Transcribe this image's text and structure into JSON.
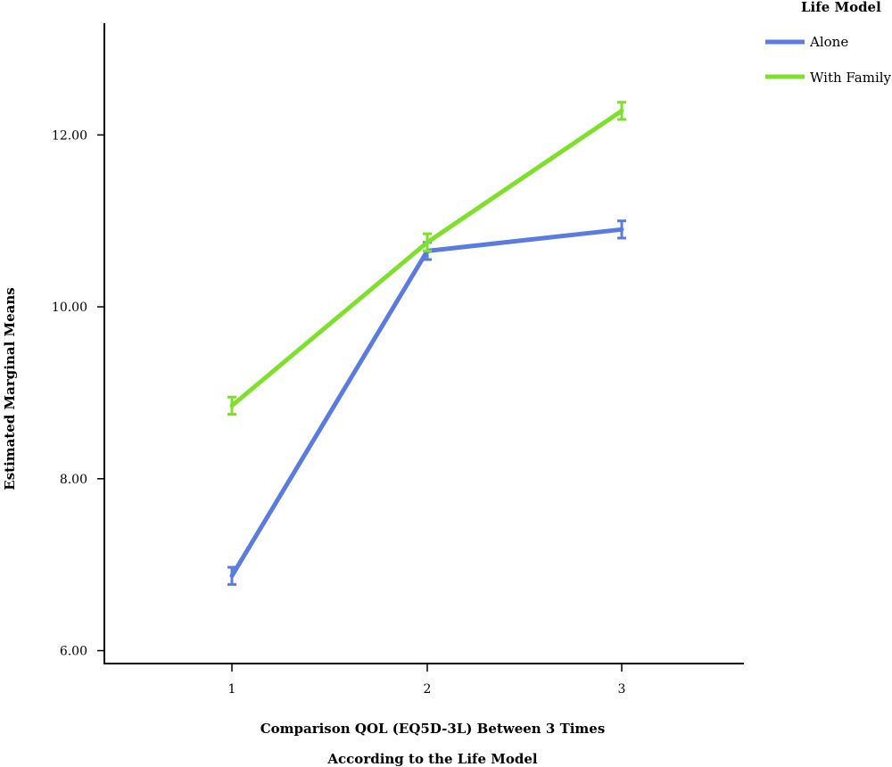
{
  "chart_data": {
    "type": "line",
    "xlabel_line1": "Comparison QOL (EQ5D-3L) Between 3 Times",
    "xlabel_line2": "According to the Life Model",
    "ylabel": "Estimated Marginal Means",
    "categories": [
      "1",
      "2",
      "3"
    ],
    "yticks": [
      "6.00",
      "8.00",
      "10.00",
      "12.00"
    ],
    "ylim": [
      5.85,
      13.3
    ],
    "legend_title": "Life Model",
    "legend_position": "top-right",
    "grid": false,
    "series": [
      {
        "name": "Alone",
        "color": "#5b7be0",
        "values": [
          6.87,
          10.65,
          10.9
        ],
        "errors": [
          0.1,
          0.1,
          0.1
        ]
      },
      {
        "name": "With Family",
        "color": "#7ee02b",
        "values": [
          8.85,
          10.75,
          12.28
        ],
        "errors": [
          0.1,
          0.1,
          0.1
        ]
      }
    ]
  }
}
